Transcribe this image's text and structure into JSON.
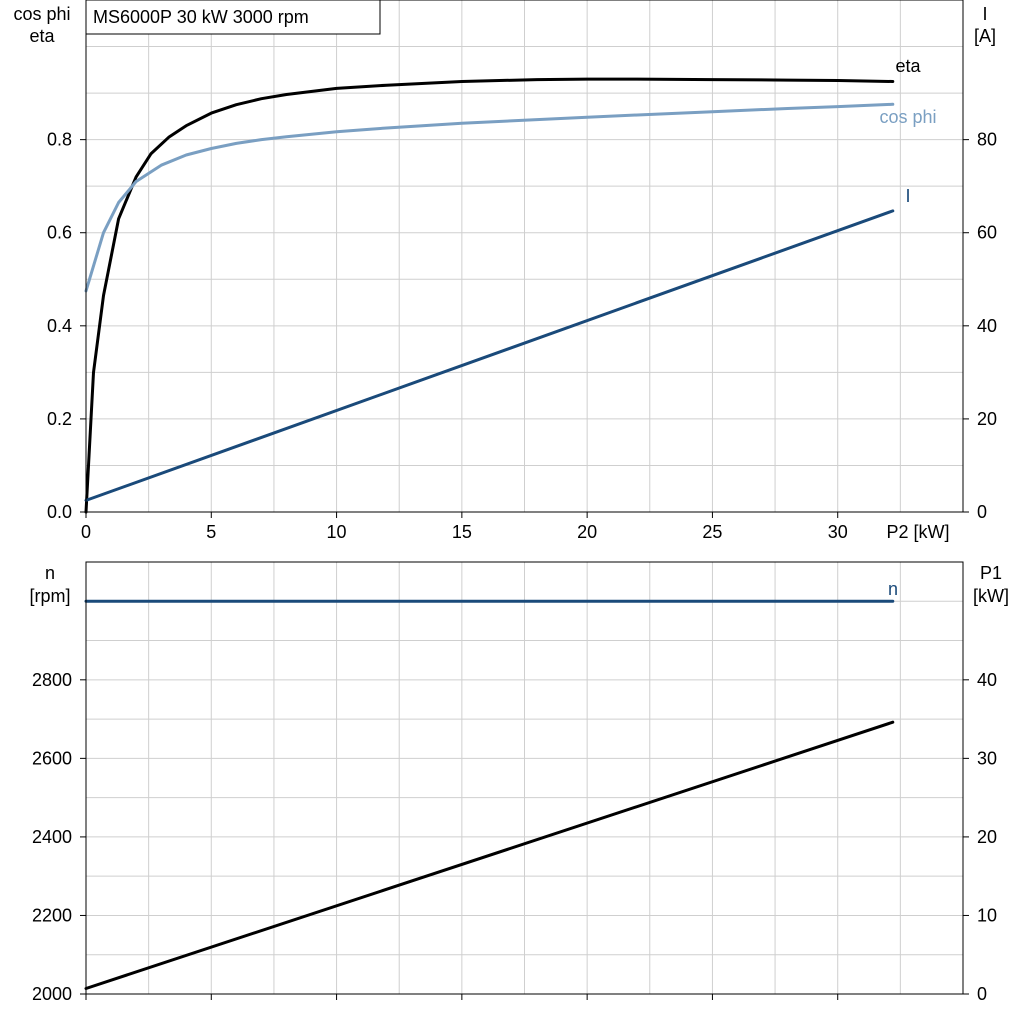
{
  "chart_data": [
    {
      "type": "line",
      "title": "MS6000P   30 kW   3000 rpm",
      "xlabel": "P2 [kW]",
      "xlim": [
        0,
        35
      ],
      "xticks": [
        0,
        5,
        10,
        15,
        20,
        25,
        30
      ],
      "left_axis": {
        "label_line1": "cos phi",
        "label_line2": "eta",
        "ylim": [
          0,
          1.1
        ],
        "ticks": [
          0.0,
          0.2,
          0.4,
          0.6,
          0.8
        ],
        "tick_labels": [
          "0.0",
          "0.2",
          "0.4",
          "0.6",
          "0.8"
        ]
      },
      "right_axis": {
        "label_line1": "I",
        "label_line2": "[A]",
        "ylim": [
          0,
          110
        ],
        "ticks": [
          0,
          20,
          40,
          60,
          80
        ],
        "tick_labels": [
          "0",
          "20",
          "40",
          "60",
          "80"
        ]
      },
      "grid": true,
      "series": [
        {
          "name": "eta",
          "axis": "left",
          "color": "#000000",
          "x": [
            0,
            0.3,
            0.7,
            1.3,
            2,
            2.6,
            3.3,
            4,
            5,
            6,
            7,
            8,
            10,
            12,
            15,
            18,
            20,
            22,
            25,
            28,
            30,
            32.2
          ],
          "y": [
            0,
            0.3,
            0.465,
            0.63,
            0.72,
            0.77,
            0.805,
            0.83,
            0.857,
            0.875,
            0.888,
            0.897,
            0.91,
            0.917,
            0.925,
            0.929,
            0.93,
            0.93,
            0.929,
            0.928,
            0.927,
            0.925
          ]
        },
        {
          "name": "cos phi",
          "axis": "left",
          "color": "#7a9fc2",
          "x": [
            0,
            0.7,
            1.3,
            2,
            3,
            4,
            5,
            6,
            7,
            8,
            10,
            12,
            15,
            18,
            20,
            22,
            25,
            28,
            30,
            32.2
          ],
          "y": [
            0.475,
            0.6,
            0.665,
            0.71,
            0.745,
            0.767,
            0.781,
            0.792,
            0.8,
            0.806,
            0.817,
            0.825,
            0.835,
            0.843,
            0.848,
            0.853,
            0.86,
            0.867,
            0.871,
            0.876
          ]
        },
        {
          "name": "I",
          "axis": "right",
          "color": "#1a4a7a",
          "x": [
            0,
            32.2
          ],
          "y": [
            2.5,
            64.7
          ]
        }
      ]
    },
    {
      "type": "line",
      "xlim": [
        0,
        35
      ],
      "xticks": [
        0,
        5,
        10,
        15,
        20,
        25,
        30
      ],
      "left_axis": {
        "label_line1": "n",
        "label_line2": "[rpm]",
        "ylim": [
          2000,
          3100
        ],
        "ticks": [
          2000,
          2200,
          2400,
          2600,
          2800
        ],
        "tick_labels": [
          "2000",
          "2200",
          "2400",
          "2600",
          "2800"
        ]
      },
      "right_axis": {
        "label_line1": "P1",
        "label_line2": "[kW]",
        "ylim": [
          0,
          55
        ],
        "ticks": [
          0,
          10,
          20,
          30,
          40
        ],
        "tick_labels": [
          "0",
          "10",
          "20",
          "30",
          "40"
        ]
      },
      "grid": true,
      "series": [
        {
          "name": "n",
          "axis": "left",
          "color": "#1a4a7a",
          "x": [
            0,
            32.2
          ],
          "y": [
            3000,
            3000
          ]
        },
        {
          "name": "",
          "axis": "right",
          "color": "#000000",
          "x": [
            0,
            32.2
          ],
          "y": [
            0.7,
            34.6
          ]
        }
      ]
    }
  ]
}
